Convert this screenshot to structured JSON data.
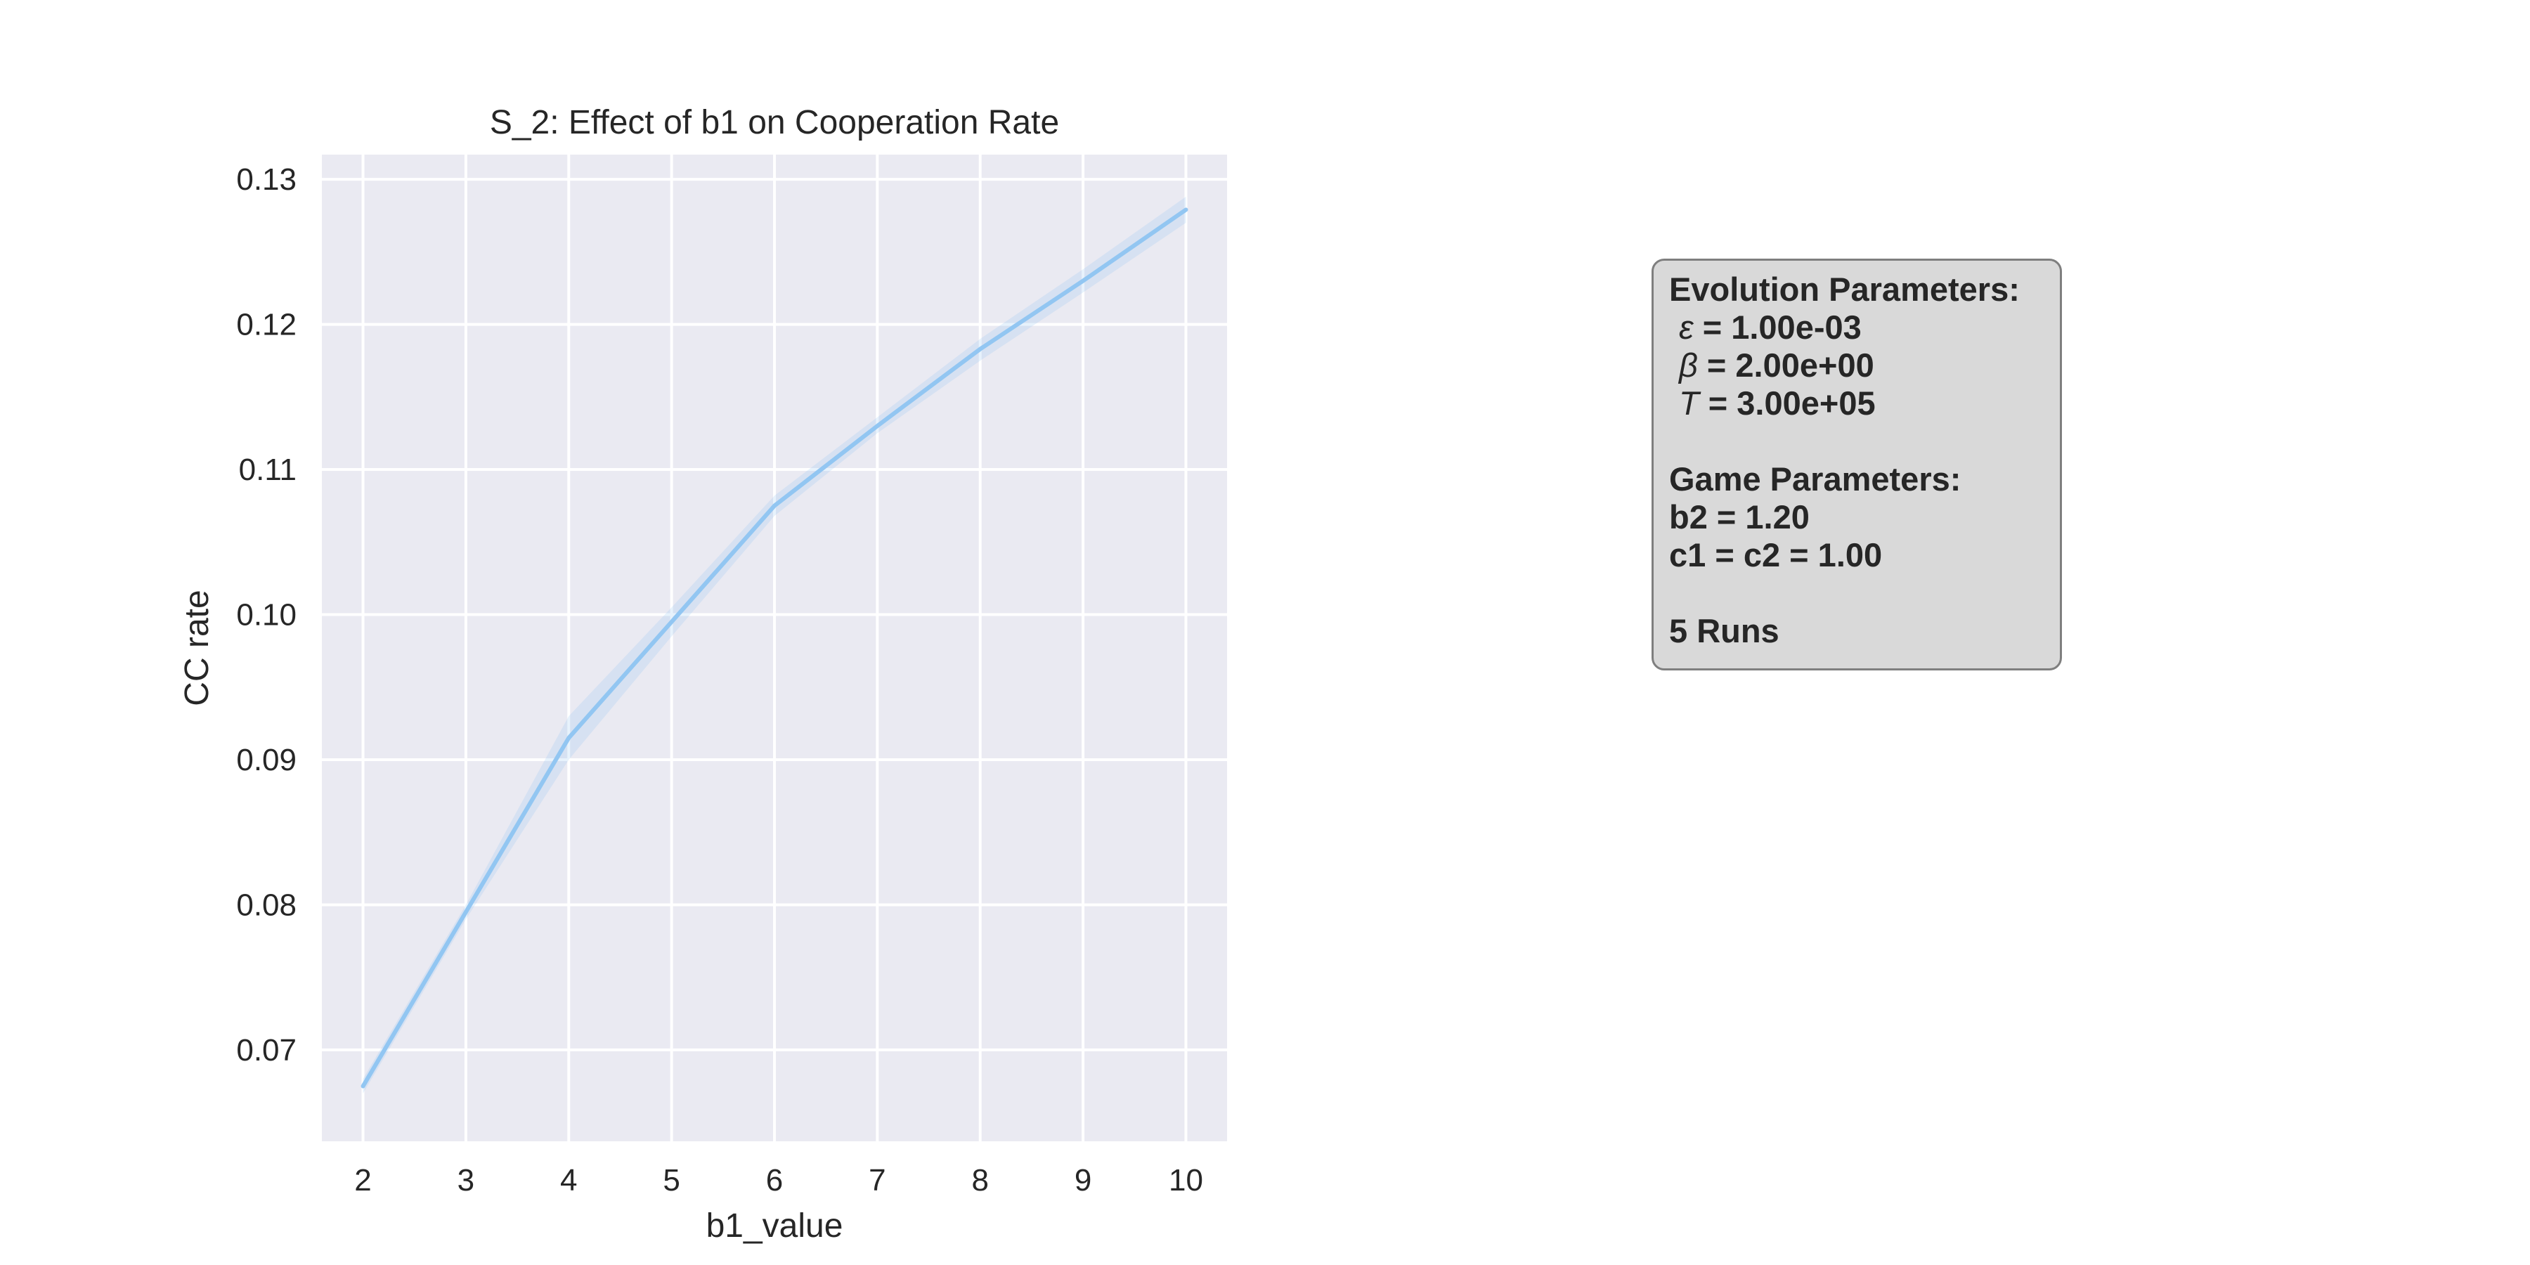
{
  "chart_data": {
    "type": "line",
    "title": "S_2: Effect of b1 on Cooperation Rate",
    "xlabel": "b1_value",
    "ylabel": "CC rate",
    "x": [
      2,
      3,
      4,
      5,
      6,
      7,
      8,
      9,
      10
    ],
    "series": [
      {
        "values": [
          0.0675,
          0.0795,
          0.0915,
          0.0995,
          0.1075,
          0.113,
          0.1183,
          0.123,
          0.1279
        ],
        "ci_lower": [
          0.067,
          0.079,
          0.09,
          0.0985,
          0.1068,
          0.1125,
          0.1175,
          0.1222,
          0.127
        ],
        "ci_upper": [
          0.068,
          0.08,
          0.093,
          0.1005,
          0.1082,
          0.1136,
          0.119,
          0.1238,
          0.1288
        ],
        "color": "#92c6f2"
      }
    ],
    "xlim": [
      1.6,
      10.4
    ],
    "ylim": [
      0.0637,
      0.1317
    ],
    "xticks": [
      2,
      3,
      4,
      5,
      6,
      7,
      8,
      9,
      10
    ],
    "xtick_labels": [
      "2",
      "3",
      "4",
      "5",
      "6",
      "7",
      "8",
      "9",
      "10"
    ],
    "yticks": [
      0.07,
      0.08,
      0.09,
      0.1,
      0.11,
      0.12,
      0.13
    ],
    "ytick_labels": [
      "0.07",
      "0.08",
      "0.09",
      "0.10",
      "0.11",
      "0.12",
      "0.13"
    ],
    "grid": true,
    "background_color": "#eaeaf2"
  },
  "param_box": {
    "evolution_header": "Evolution Parameters:",
    "epsilon_symbol": "ε",
    "epsilon_value": " = 1.00e-03",
    "beta_symbol": "β",
    "beta_value": " = 2.00e+00",
    "T_symbol": "T",
    "T_value": " = 3.00e+05",
    "game_header": "Game Parameters:",
    "b2_line": "b2 = 1.20",
    "c_line": "c1 = c2 = 1.00",
    "runs_line": "5 Runs"
  }
}
